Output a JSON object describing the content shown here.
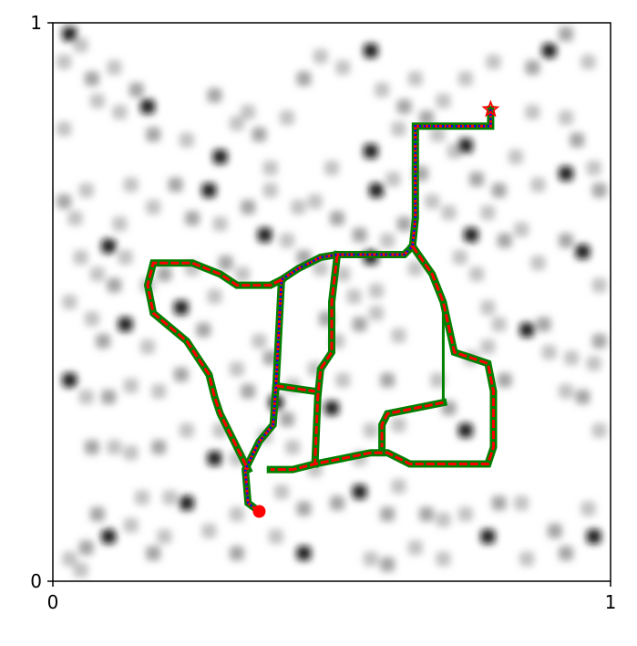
{
  "chart_data": {
    "type": "path-planning-map",
    "x_ticks": [
      {
        "value": 0,
        "label": "0"
      },
      {
        "value": 1,
        "label": "1"
      }
    ],
    "y_ticks": [
      {
        "value": 0,
        "label": "0"
      },
      {
        "value": 1,
        "label": "1"
      }
    ],
    "xlim": [
      0,
      1
    ],
    "ylim": [
      0,
      1
    ],
    "grid": false,
    "start": {
      "x": 0.37,
      "y": 0.125,
      "color": "#ff0000",
      "marker": "circle"
    },
    "goal": {
      "x": 0.785,
      "y": 0.845,
      "color": "#ff0000",
      "marker": "star"
    },
    "obstacles": [
      [
        0.03,
        0.98
      ],
      [
        0.05,
        0.96
      ],
      [
        0.02,
        0.93
      ],
      [
        0.07,
        0.9
      ],
      [
        0.11,
        0.92
      ],
      [
        0.08,
        0.86
      ],
      [
        0.15,
        0.88
      ],
      [
        0.17,
        0.85
      ],
      [
        0.12,
        0.84
      ],
      [
        0.18,
        0.8
      ],
      [
        0.02,
        0.81
      ],
      [
        0.24,
        0.79
      ],
      [
        0.29,
        0.87
      ],
      [
        0.33,
        0.82
      ],
      [
        0.3,
        0.76
      ],
      [
        0.37,
        0.8
      ],
      [
        0.35,
        0.84
      ],
      [
        0.42,
        0.83
      ],
      [
        0.45,
        0.9
      ],
      [
        0.48,
        0.94
      ],
      [
        0.52,
        0.92
      ],
      [
        0.57,
        0.95
      ],
      [
        0.65,
        0.9
      ],
      [
        0.7,
        0.86
      ],
      [
        0.67,
        0.83
      ],
      [
        0.74,
        0.9
      ],
      [
        0.79,
        0.93
      ],
      [
        0.86,
        0.92
      ],
      [
        0.89,
        0.95
      ],
      [
        0.96,
        0.93
      ],
      [
        0.92,
        0.98
      ],
      [
        0.86,
        0.84
      ],
      [
        0.92,
        0.83
      ],
      [
        0.94,
        0.79
      ],
      [
        0.97,
        0.74
      ],
      [
        0.92,
        0.73
      ],
      [
        0.98,
        0.7
      ],
      [
        0.83,
        0.76
      ],
      [
        0.87,
        0.71
      ],
      [
        0.76,
        0.72
      ],
      [
        0.72,
        0.77
      ],
      [
        0.62,
        0.81
      ],
      [
        0.57,
        0.77
      ],
      [
        0.5,
        0.74
      ],
      [
        0.47,
        0.68
      ],
      [
        0.51,
        0.65
      ],
      [
        0.44,
        0.67
      ],
      [
        0.42,
        0.61
      ],
      [
        0.45,
        0.58
      ],
      [
        0.38,
        0.62
      ],
      [
        0.34,
        0.55
      ],
      [
        0.31,
        0.57
      ],
      [
        0.29,
        0.51
      ],
      [
        0.25,
        0.56
      ],
      [
        0.2,
        0.55
      ],
      [
        0.17,
        0.53
      ],
      [
        0.23,
        0.49
      ],
      [
        0.27,
        0.45
      ],
      [
        0.13,
        0.58
      ],
      [
        0.05,
        0.58
      ],
      [
        0.02,
        0.68
      ],
      [
        0.04,
        0.65
      ],
      [
        0.06,
        0.7
      ],
      [
        0.1,
        0.6
      ],
      [
        0.12,
        0.64
      ],
      [
        0.08,
        0.55
      ],
      [
        0.11,
        0.53
      ],
      [
        0.03,
        0.5
      ],
      [
        0.07,
        0.47
      ],
      [
        0.09,
        0.43
      ],
      [
        0.13,
        0.46
      ],
      [
        0.17,
        0.42
      ],
      [
        0.23,
        0.37
      ],
      [
        0.19,
        0.34
      ],
      [
        0.14,
        0.35
      ],
      [
        0.1,
        0.33
      ],
      [
        0.06,
        0.33
      ],
      [
        0.03,
        0.36
      ],
      [
        0.07,
        0.24
      ],
      [
        0.11,
        0.24
      ],
      [
        0.14,
        0.23
      ],
      [
        0.19,
        0.24
      ],
      [
        0.24,
        0.27
      ],
      [
        0.3,
        0.27
      ],
      [
        0.29,
        0.22
      ],
      [
        0.33,
        0.22
      ],
      [
        0.38,
        0.26
      ],
      [
        0.42,
        0.29
      ],
      [
        0.43,
        0.24
      ],
      [
        0.47,
        0.2
      ],
      [
        0.51,
        0.14
      ],
      [
        0.55,
        0.16
      ],
      [
        0.62,
        0.17
      ],
      [
        0.67,
        0.12
      ],
      [
        0.7,
        0.11
      ],
      [
        0.74,
        0.12
      ],
      [
        0.8,
        0.14
      ],
      [
        0.84,
        0.14
      ],
      [
        0.78,
        0.08
      ],
      [
        0.9,
        0.09
      ],
      [
        0.96,
        0.13
      ],
      [
        0.98,
        0.27
      ],
      [
        0.95,
        0.33
      ],
      [
        0.92,
        0.34
      ],
      [
        0.89,
        0.41
      ],
      [
        0.85,
        0.45
      ],
      [
        0.8,
        0.46
      ],
      [
        0.78,
        0.42
      ],
      [
        0.81,
        0.36
      ],
      [
        0.75,
        0.4
      ],
      [
        0.69,
        0.36
      ],
      [
        0.71,
        0.31
      ],
      [
        0.74,
        0.27
      ],
      [
        0.62,
        0.28
      ],
      [
        0.6,
        0.36
      ],
      [
        0.62,
        0.44
      ],
      [
        0.58,
        0.48
      ],
      [
        0.55,
        0.46
      ],
      [
        0.58,
        0.52
      ],
      [
        0.57,
        0.58
      ],
      [
        0.55,
        0.62
      ],
      [
        0.52,
        0.55
      ],
      [
        0.6,
        0.61
      ],
      [
        0.63,
        0.64
      ],
      [
        0.65,
        0.56
      ],
      [
        0.73,
        0.58
      ],
      [
        0.75,
        0.62
      ],
      [
        0.76,
        0.55
      ],
      [
        0.78,
        0.49
      ],
      [
        0.81,
        0.61
      ],
      [
        0.84,
        0.63
      ],
      [
        0.87,
        0.57
      ],
      [
        0.92,
        0.61
      ],
      [
        0.95,
        0.59
      ],
      [
        0.98,
        0.53
      ],
      [
        0.98,
        0.43
      ],
      [
        0.93,
        0.4
      ],
      [
        0.97,
        0.39
      ],
      [
        0.88,
        0.46
      ],
      [
        0.43,
        0.35
      ],
      [
        0.4,
        0.32
      ],
      [
        0.35,
        0.34
      ],
      [
        0.33,
        0.38
      ],
      [
        0.37,
        0.43
      ],
      [
        0.39,
        0.4
      ],
      [
        0.47,
        0.38
      ],
      [
        0.52,
        0.36
      ],
      [
        0.5,
        0.31
      ],
      [
        0.57,
        0.27
      ],
      [
        0.55,
        0.22
      ],
      [
        0.6,
        0.12
      ],
      [
        0.65,
        0.06
      ],
      [
        0.7,
        0.04
      ],
      [
        0.6,
        0.03
      ],
      [
        0.45,
        0.05
      ],
      [
        0.4,
        0.08
      ],
      [
        0.33,
        0.05
      ],
      [
        0.28,
        0.09
      ],
      [
        0.2,
        0.08
      ],
      [
        0.18,
        0.05
      ],
      [
        0.14,
        0.1
      ],
      [
        0.1,
        0.08
      ],
      [
        0.06,
        0.06
      ],
      [
        0.03,
        0.04
      ],
      [
        0.05,
        0.02
      ],
      [
        0.08,
        0.12
      ],
      [
        0.16,
        0.15
      ],
      [
        0.21,
        0.15
      ],
      [
        0.24,
        0.14
      ],
      [
        0.33,
        0.12
      ],
      [
        0.41,
        0.16
      ],
      [
        0.45,
        0.13
      ],
      [
        0.57,
        0.04
      ],
      [
        0.85,
        0.04
      ],
      [
        0.92,
        0.05
      ],
      [
        0.97,
        0.08
      ],
      [
        0.54,
        0.51
      ],
      [
        0.49,
        0.47
      ],
      [
        0.48,
        0.56
      ],
      [
        0.51,
        0.43
      ],
      [
        0.35,
        0.67
      ],
      [
        0.39,
        0.7
      ],
      [
        0.28,
        0.7
      ],
      [
        0.22,
        0.71
      ],
      [
        0.14,
        0.71
      ],
      [
        0.18,
        0.67
      ],
      [
        0.25,
        0.65
      ],
      [
        0.3,
        0.64
      ],
      [
        0.39,
        0.74
      ],
      [
        0.58,
        0.7
      ],
      [
        0.61,
        0.72
      ],
      [
        0.68,
        0.68
      ],
      [
        0.66,
        0.73
      ],
      [
        0.71,
        0.66
      ],
      [
        0.78,
        0.66
      ],
      [
        0.8,
        0.7
      ],
      [
        0.74,
        0.78
      ],
      [
        0.69,
        0.8
      ],
      [
        0.63,
        0.85
      ],
      [
        0.59,
        0.88
      ]
    ],
    "paths": [
      {
        "style": "thick-green",
        "color": "#008000",
        "points": [
          [
            0.37,
            0.125
          ],
          [
            0.35,
            0.14
          ],
          [
            0.345,
            0.2
          ],
          [
            0.37,
            0.25
          ],
          [
            0.395,
            0.28
          ],
          [
            0.4,
            0.35
          ],
          [
            0.41,
            0.54
          ],
          [
            0.44,
            0.56
          ],
          [
            0.48,
            0.58
          ],
          [
            0.51,
            0.585
          ],
          [
            0.63,
            0.585
          ],
          [
            0.645,
            0.6
          ],
          [
            0.65,
            0.65
          ],
          [
            0.65,
            0.815
          ],
          [
            0.785,
            0.815
          ],
          [
            0.785,
            0.845
          ]
        ]
      },
      {
        "style": "thick-green",
        "color": "#008000",
        "points": [
          [
            0.41,
            0.54
          ],
          [
            0.39,
            0.53
          ],
          [
            0.33,
            0.53
          ],
          [
            0.3,
            0.55
          ],
          [
            0.25,
            0.57
          ],
          [
            0.18,
            0.57
          ],
          [
            0.17,
            0.53
          ],
          [
            0.18,
            0.48
          ],
          [
            0.24,
            0.43
          ],
          [
            0.28,
            0.37
          ],
          [
            0.29,
            0.33
          ],
          [
            0.3,
            0.3
          ],
          [
            0.35,
            0.2
          ]
        ]
      },
      {
        "style": "thick-green",
        "color": "#008000",
        "points": [
          [
            0.645,
            0.6
          ],
          [
            0.68,
            0.55
          ],
          [
            0.7,
            0.5
          ],
          [
            0.72,
            0.41
          ],
          [
            0.75,
            0.4
          ],
          [
            0.78,
            0.39
          ],
          [
            0.79,
            0.34
          ],
          [
            0.79,
            0.24
          ],
          [
            0.78,
            0.21
          ],
          [
            0.7,
            0.21
          ],
          [
            0.64,
            0.21
          ],
          [
            0.6,
            0.23
          ],
          [
            0.57,
            0.23
          ],
          [
            0.52,
            0.22
          ],
          [
            0.47,
            0.21
          ],
          [
            0.43,
            0.2
          ],
          [
            0.39,
            0.2
          ]
        ]
      },
      {
        "style": "thick-green",
        "color": "#008000",
        "points": [
          [
            0.51,
            0.585
          ],
          [
            0.5,
            0.5
          ],
          [
            0.5,
            0.41
          ],
          [
            0.48,
            0.38
          ],
          [
            0.475,
            0.33
          ],
          [
            0.47,
            0.21
          ]
        ]
      },
      {
        "style": "thick-green",
        "color": "#008000",
        "points": [
          [
            0.4,
            0.35
          ],
          [
            0.47,
            0.34
          ]
        ]
      },
      {
        "style": "thick-green",
        "color": "#008000",
        "points": [
          [
            0.7,
            0.32
          ],
          [
            0.6,
            0.3
          ],
          [
            0.59,
            0.28
          ],
          [
            0.59,
            0.24
          ]
        ]
      },
      {
        "style": "thin-green",
        "color": "#008000",
        "points": [
          [
            0.7,
            0.5
          ],
          [
            0.7,
            0.32
          ]
        ]
      },
      {
        "style": "red-dashed",
        "color": "#ff0000",
        "points": [
          [
            0.37,
            0.125
          ],
          [
            0.35,
            0.14
          ],
          [
            0.345,
            0.2
          ],
          [
            0.37,
            0.25
          ],
          [
            0.395,
            0.28
          ],
          [
            0.4,
            0.35
          ],
          [
            0.41,
            0.54
          ],
          [
            0.44,
            0.56
          ],
          [
            0.48,
            0.58
          ],
          [
            0.51,
            0.585
          ],
          [
            0.63,
            0.585
          ],
          [
            0.645,
            0.6
          ],
          [
            0.65,
            0.65
          ],
          [
            0.65,
            0.815
          ],
          [
            0.785,
            0.815
          ],
          [
            0.785,
            0.845
          ]
        ]
      },
      {
        "style": "red-dashed",
        "color": "#ff0000",
        "points": [
          [
            0.41,
            0.54
          ],
          [
            0.39,
            0.53
          ],
          [
            0.33,
            0.53
          ],
          [
            0.3,
            0.55
          ],
          [
            0.25,
            0.57
          ],
          [
            0.18,
            0.57
          ],
          [
            0.17,
            0.53
          ],
          [
            0.18,
            0.48
          ],
          [
            0.24,
            0.43
          ],
          [
            0.28,
            0.37
          ],
          [
            0.29,
            0.33
          ],
          [
            0.3,
            0.3
          ],
          [
            0.35,
            0.2
          ]
        ]
      },
      {
        "style": "red-dashed",
        "color": "#ff0000",
        "points": [
          [
            0.645,
            0.6
          ],
          [
            0.68,
            0.55
          ],
          [
            0.7,
            0.5
          ],
          [
            0.72,
            0.41
          ],
          [
            0.75,
            0.4
          ],
          [
            0.78,
            0.39
          ],
          [
            0.79,
            0.34
          ],
          [
            0.79,
            0.24
          ],
          [
            0.78,
            0.21
          ],
          [
            0.7,
            0.21
          ],
          [
            0.64,
            0.21
          ],
          [
            0.6,
            0.23
          ],
          [
            0.57,
            0.23
          ],
          [
            0.52,
            0.22
          ],
          [
            0.47,
            0.21
          ],
          [
            0.43,
            0.2
          ],
          [
            0.39,
            0.2
          ]
        ]
      },
      {
        "style": "red-dashed",
        "color": "#ff0000",
        "points": [
          [
            0.51,
            0.585
          ],
          [
            0.5,
            0.5
          ],
          [
            0.5,
            0.41
          ],
          [
            0.48,
            0.38
          ],
          [
            0.475,
            0.33
          ],
          [
            0.47,
            0.21
          ]
        ]
      },
      {
        "style": "red-dashed",
        "color": "#ff0000",
        "points": [
          [
            0.4,
            0.35
          ],
          [
            0.47,
            0.34
          ]
        ]
      },
      {
        "style": "red-dashed",
        "color": "#ff0000",
        "points": [
          [
            0.7,
            0.32
          ],
          [
            0.6,
            0.3
          ],
          [
            0.59,
            0.28
          ],
          [
            0.59,
            0.24
          ]
        ]
      },
      {
        "style": "blue-dotted",
        "color": "#0000ff",
        "points": [
          [
            0.37,
            0.125
          ],
          [
            0.35,
            0.14
          ],
          [
            0.345,
            0.2
          ],
          [
            0.37,
            0.25
          ],
          [
            0.395,
            0.28
          ],
          [
            0.4,
            0.35
          ],
          [
            0.41,
            0.54
          ],
          [
            0.44,
            0.56
          ],
          [
            0.48,
            0.58
          ],
          [
            0.51,
            0.585
          ],
          [
            0.63,
            0.585
          ],
          [
            0.645,
            0.6
          ],
          [
            0.65,
            0.65
          ],
          [
            0.65,
            0.815
          ],
          [
            0.785,
            0.815
          ],
          [
            0.785,
            0.845
          ]
        ]
      }
    ]
  }
}
